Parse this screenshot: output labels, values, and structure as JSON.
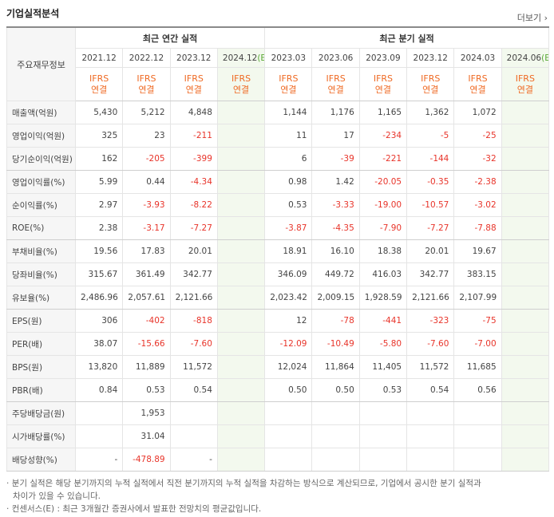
{
  "header": {
    "title": "기업실적분석",
    "more": "더보기"
  },
  "table": {
    "corner": "주요재무정보",
    "group_headers": [
      {
        "label": "최근 연간 실적",
        "span": 4
      },
      {
        "label": "최근 분기 실적",
        "span": 6
      }
    ],
    "periods": [
      {
        "date": "2021.12",
        "basis": "IFRS",
        "scope": "연결"
      },
      {
        "date": "2022.12",
        "basis": "IFRS",
        "scope": "연결"
      },
      {
        "date": "2023.12",
        "basis": "IFRS",
        "scope": "연결"
      },
      {
        "date": "2024.12",
        "estimate": "(E)",
        "basis": "IFRS",
        "scope": "연결"
      },
      {
        "date": "2023.03",
        "basis": "IFRS",
        "scope": "연결"
      },
      {
        "date": "2023.06",
        "basis": "IFRS",
        "scope": "연결"
      },
      {
        "date": "2023.09",
        "basis": "IFRS",
        "scope": "연결"
      },
      {
        "date": "2023.12",
        "basis": "IFRS",
        "scope": "연결"
      },
      {
        "date": "2024.03",
        "basis": "IFRS",
        "scope": "연결"
      },
      {
        "date": "2024.06",
        "estimate": "(E)",
        "basis": "IFRS",
        "scope": "연결"
      }
    ],
    "groups": [
      {
        "rows": [
          {
            "label": "매출액(억원)",
            "values": [
              "5,430",
              "5,212",
              "4,848",
              null,
              "1,144",
              "1,176",
              "1,165",
              "1,362",
              "1,072",
              null
            ]
          },
          {
            "label": "영업이익(억원)",
            "values": [
              "325",
              "23",
              "-211",
              null,
              "11",
              "17",
              "-234",
              "-5",
              "-25",
              null
            ]
          },
          {
            "label": "당기순이익(억원)",
            "values": [
              "162",
              "-205",
              "-399",
              null,
              "6",
              "-39",
              "-221",
              "-144",
              "-32",
              null
            ]
          }
        ]
      },
      {
        "rows": [
          {
            "label": "영업이익률(%)",
            "values": [
              "5.99",
              "0.44",
              "-4.34",
              null,
              "0.98",
              "1.42",
              "-20.05",
              "-0.35",
              "-2.38",
              null
            ]
          },
          {
            "label": "순이익률(%)",
            "values": [
              "2.97",
              "-3.93",
              "-8.22",
              null,
              "0.53",
              "-3.33",
              "-19.00",
              "-10.57",
              "-3.02",
              null
            ]
          },
          {
            "label": "ROE(%)",
            "values": [
              "2.38",
              "-3.17",
              "-7.27",
              null,
              "-3.87",
              "-4.35",
              "-7.90",
              "-7.27",
              "-7.88",
              null
            ]
          }
        ]
      },
      {
        "rows": [
          {
            "label": "부채비율(%)",
            "values": [
              "19.56",
              "17.83",
              "20.01",
              null,
              "18.91",
              "16.10",
              "18.38",
              "20.01",
              "19.67",
              null
            ]
          },
          {
            "label": "당좌비율(%)",
            "values": [
              "315.67",
              "361.49",
              "342.77",
              null,
              "346.09",
              "449.72",
              "416.03",
              "342.77",
              "383.15",
              null
            ]
          },
          {
            "label": "유보율(%)",
            "values": [
              "2,486.96",
              "2,057.61",
              "2,121.66",
              null,
              "2,023.42",
              "2,009.15",
              "1,928.59",
              "2,121.66",
              "2,107.99",
              null
            ]
          }
        ]
      },
      {
        "rows": [
          {
            "label": "EPS(원)",
            "values": [
              "306",
              "-402",
              "-818",
              null,
              "12",
              "-78",
              "-441",
              "-323",
              "-75",
              null
            ]
          },
          {
            "label": "PER(배)",
            "values": [
              "38.07",
              "-15.66",
              "-7.60",
              null,
              "-12.09",
              "-10.49",
              "-5.80",
              "-7.60",
              "-7.00",
              null
            ]
          },
          {
            "label": "BPS(원)",
            "values": [
              "13,820",
              "11,889",
              "11,572",
              null,
              "12,024",
              "11,864",
              "11,405",
              "11,572",
              "11,685",
              null
            ]
          },
          {
            "label": "PBR(배)",
            "values": [
              "0.84",
              "0.53",
              "0.54",
              null,
              "0.50",
              "0.50",
              "0.53",
              "0.54",
              "0.56",
              null
            ]
          }
        ]
      },
      {
        "rows": [
          {
            "label": "주당배당금(원)",
            "values": [
              null,
              "1,953",
              null,
              null,
              null,
              null,
              null,
              null,
              null,
              null
            ]
          },
          {
            "label": "시가배당률(%)",
            "values": [
              null,
              "31.04",
              null,
              null,
              null,
              null,
              null,
              null,
              null,
              null
            ]
          },
          {
            "label": "배당성향(%)",
            "values": [
              "-",
              "-478.89",
              "-",
              null,
              null,
              null,
              null,
              null,
              null,
              null
            ]
          }
        ]
      }
    ]
  },
  "notes": [
    "분기 실적은 해당 분기까지의 누적 실적에서 직전 분기까지의 누적 실적을 차감하는 방식으로 계산되므로, 기업에서 공시한 분기 실적과 차이가 있을 수 있습니다.",
    "컨센서스(E) : 최근 3개월간 증권사에서 발표한 전망치의 평균값입니다."
  ]
}
